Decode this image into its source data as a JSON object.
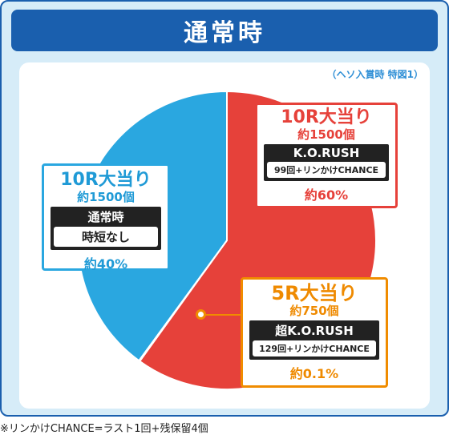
{
  "header": {
    "title": "通常時"
  },
  "source_note": "（ヘソ入賞時 特図1）",
  "chart_data": {
    "type": "pie",
    "slices": [
      {
        "label": "10R大当り",
        "value": 60,
        "color": "#e6413a"
      },
      {
        "label": "5R大当り",
        "value": 0.1,
        "color": "#f08c00"
      },
      {
        "label": "10R大当り",
        "value": 40,
        "color": "#2aa7e0"
      }
    ]
  },
  "blue_box": {
    "title": "10R大当り",
    "payout": "約1500個",
    "mode": "通常時",
    "mode_detail": "時短なし",
    "percent": "約40%"
  },
  "red_box": {
    "title": "10R大当り",
    "payout": "約1500個",
    "mode": "K.O.RUSH",
    "mode_detail": "99回+リンかけCHANCE",
    "percent": "約60%"
  },
  "orange_box": {
    "title": "5R大当り",
    "payout": "約750個",
    "mode": "超K.O.RUSH",
    "mode_detail": "129回+リンかけCHANCE",
    "percent": "約0.1%"
  },
  "footnote": "※リンかけCHANCE=ラスト1回+残保留4個"
}
